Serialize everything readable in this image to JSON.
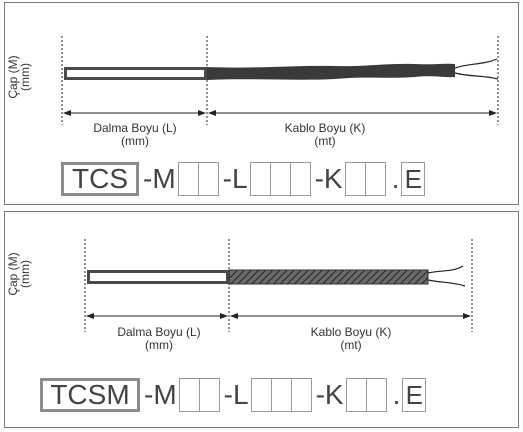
{
  "diagram_1": {
    "dia_label": "Çap (M)",
    "dia_unit": "(mm)",
    "immersion_label": "Dalma Boyu (L)",
    "immersion_unit": "(mm)",
    "cable_label": "Kablo Boyu (K)",
    "cable_unit": "(mt)",
    "code": {
      "prefix": "TCS",
      "m": "-M",
      "l": "-L",
      "k": "-K",
      "dot": ".",
      "e": "E",
      "m_boxes": 2,
      "l_boxes": 3,
      "k_boxes": 2
    }
  },
  "diagram_2": {
    "dia_label": "Çap (M)",
    "dia_unit": "(mm)",
    "immersion_label": "Dalma Boyu (L)",
    "immersion_unit": "(mm)",
    "cable_label": "Kablo Boyu (K)",
    "cable_unit": "(mt)",
    "code": {
      "prefix": "TCSM",
      "m": "-M",
      "l": "-L",
      "k": "-K",
      "dot": ".",
      "e": "E",
      "m_boxes": 2,
      "l_boxes": 3,
      "k_boxes": 2
    }
  },
  "colors": {
    "border": "#7a7a7a",
    "cable_dark": "#3a3a3a",
    "cable_braid": "#555555",
    "probe": "#4a4a4a",
    "text": "#333333"
  }
}
